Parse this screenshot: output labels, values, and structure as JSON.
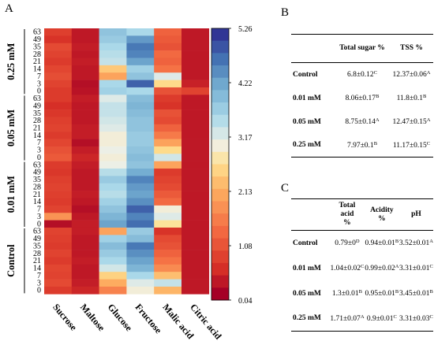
{
  "panels": {
    "a": "A",
    "b": "B",
    "c": "C"
  },
  "chart_data": {
    "type": "heatmap",
    "columns": [
      "Sucrose",
      "Maltose",
      "Glucose",
      "Fructose",
      "Malic acid",
      "Citric acid"
    ],
    "groups": [
      {
        "name": "0.25 mM",
        "days": [
          "63",
          "49",
          "35",
          "28",
          "21",
          "14",
          "7",
          "3",
          "0"
        ],
        "values": [
          [
            0.75,
            0.3,
            3.9,
            3.6,
            1.2,
            0.3
          ],
          [
            0.6,
            0.3,
            3.8,
            4.4,
            1.1,
            0.3
          ],
          [
            0.9,
            0.35,
            3.6,
            4.7,
            1.0,
            0.3
          ],
          [
            0.8,
            0.3,
            3.5,
            4.6,
            1.3,
            0.3
          ],
          [
            0.7,
            0.35,
            3.4,
            4.3,
            1.2,
            0.3
          ],
          [
            0.85,
            0.3,
            2.4,
            3.7,
            1.4,
            0.3
          ],
          [
            0.95,
            0.3,
            2.0,
            3.9,
            3.2,
            0.3
          ],
          [
            0.8,
            0.2,
            3.6,
            4.9,
            2.6,
            0.4
          ],
          [
            0.7,
            0.25,
            3.7,
            3.6,
            1.0,
            0.8
          ]
        ]
      },
      {
        "name": "0.05 mM",
        "days": [
          "63",
          "49",
          "35",
          "28",
          "21",
          "14",
          "7",
          "3",
          "0"
        ],
        "values": [
          [
            0.7,
            0.35,
            3.2,
            4.0,
            0.7,
            0.3
          ],
          [
            0.55,
            0.3,
            3.4,
            4.1,
            0.6,
            0.3
          ],
          [
            0.65,
            0.3,
            3.4,
            4.0,
            1.0,
            0.3
          ],
          [
            0.75,
            0.3,
            3.3,
            3.9,
            0.9,
            0.3
          ],
          [
            0.8,
            0.35,
            3.2,
            3.9,
            1.2,
            0.3
          ],
          [
            0.7,
            0.35,
            3.0,
            3.8,
            1.5,
            0.3
          ],
          [
            0.85,
            0.2,
            3.0,
            3.8,
            2.0,
            0.3
          ],
          [
            1.0,
            0.35,
            3.1,
            3.9,
            2.6,
            0.3
          ],
          [
            1.1,
            0.45,
            3.0,
            4.0,
            3.3,
            0.3
          ]
        ]
      },
      {
        "name": "0.01 mM",
        "days": [
          "63",
          "49",
          "35",
          "28",
          "21",
          "14",
          "7",
          "3",
          "0"
        ],
        "values": [
          [
            0.7,
            0.35,
            3.1,
            3.9,
            2.0,
            0.3
          ],
          [
            0.65,
            0.3,
            3.5,
            4.2,
            0.7,
            0.3
          ],
          [
            0.75,
            0.3,
            3.8,
            4.6,
            0.8,
            0.3
          ],
          [
            0.8,
            0.3,
            3.6,
            4.4,
            0.9,
            0.3
          ],
          [
            0.75,
            0.35,
            3.5,
            4.3,
            1.1,
            0.3
          ],
          [
            0.7,
            0.3,
            3.7,
            4.5,
            1.3,
            0.3
          ],
          [
            0.8,
            0.2,
            3.9,
            4.9,
            3.0,
            0.3
          ],
          [
            1.8,
            0.3,
            4.1,
            4.6,
            3.2,
            0.3
          ],
          [
            0.2,
            0.35,
            4.3,
            4.8,
            2.7,
            0.3
          ]
        ]
      },
      {
        "name": "Control",
        "days": [
          "63",
          "49",
          "35",
          "28",
          "21",
          "14",
          "7",
          "3",
          "0"
        ],
        "values": [
          [
            0.8,
            0.35,
            2.0,
            3.8,
            0.6,
            0.3
          ],
          [
            0.75,
            0.3,
            3.7,
            4.0,
            0.9,
            0.3
          ],
          [
            0.7,
            0.3,
            4.0,
            4.7,
            1.0,
            0.3
          ],
          [
            0.8,
            0.3,
            3.8,
            4.5,
            1.2,
            0.3
          ],
          [
            0.7,
            0.35,
            3.6,
            4.3,
            1.4,
            0.3
          ],
          [
            0.85,
            0.3,
            3.3,
            4.1,
            1.7,
            0.3
          ],
          [
            0.8,
            0.3,
            2.5,
            3.6,
            2.3,
            0.3
          ],
          [
            0.9,
            0.35,
            2.1,
            3.2,
            3.4,
            0.3
          ],
          [
            0.7,
            0.45,
            1.6,
            3.0,
            2.2,
            0.3
          ]
        ]
      }
    ],
    "colorbar": {
      "ticks": [
        "5.26",
        "4.22",
        "3.17",
        "2.13",
        "1.08",
        "0.04"
      ],
      "min": 0.04,
      "max": 5.26
    }
  },
  "table_b": {
    "headers": [
      "",
      "Total sugar %",
      "TSS %"
    ],
    "rows": [
      {
        "label": "Control",
        "c1": "6.8±0.12",
        "s1": "C",
        "c2": "12.37±0.06",
        "s2": "A"
      },
      {
        "label": "0.01 mM",
        "c1": "8.06±0.17",
        "s1": "B",
        "c2": "11.8±0.1",
        "s2": "B"
      },
      {
        "label": "0.05 mM",
        "c1": "8.75±0.14",
        "s1": "A",
        "c2": "12.47±0.15",
        "s2": "A"
      },
      {
        "label": "0.25 mM",
        "c1": "7.97±0.1",
        "s1": "B",
        "c2": "11.17±0.15",
        "s2": "C"
      }
    ]
  },
  "table_c": {
    "headers": {
      "col1_line1": "Total",
      "col1_line2": "acid",
      "col1_line3": "%",
      "col2_line1": "Acidity",
      "col2_line2": "%",
      "col3": "pH"
    },
    "rows": [
      {
        "label": "Control",
        "c1": "0.79±0",
        "s1": "D",
        "c2": "0.94±0.01",
        "s2": "B",
        "c3": "3.52±0.01",
        "s3": "A"
      },
      {
        "label": "0.01 mM",
        "c1": "1.04±0.02",
        "s1": "C",
        "c2": "0.99±0.02",
        "s2": "A",
        "c3": "3.31±0.01",
        "s3": "C"
      },
      {
        "label": "0.05 mM",
        "c1": "1.3±0.01",
        "s1": "B",
        "c2": "0.95±0.01",
        "s2": "B",
        "c3": "3.45±0.01",
        "s3": "B"
      },
      {
        "label": "0.25 mM",
        "c1": "1.71±0.07",
        "s1": "A",
        "c2": "0.9±0.01",
        "s2": "C",
        "c3": "3.31±0.03",
        "s3": "C"
      }
    ]
  }
}
